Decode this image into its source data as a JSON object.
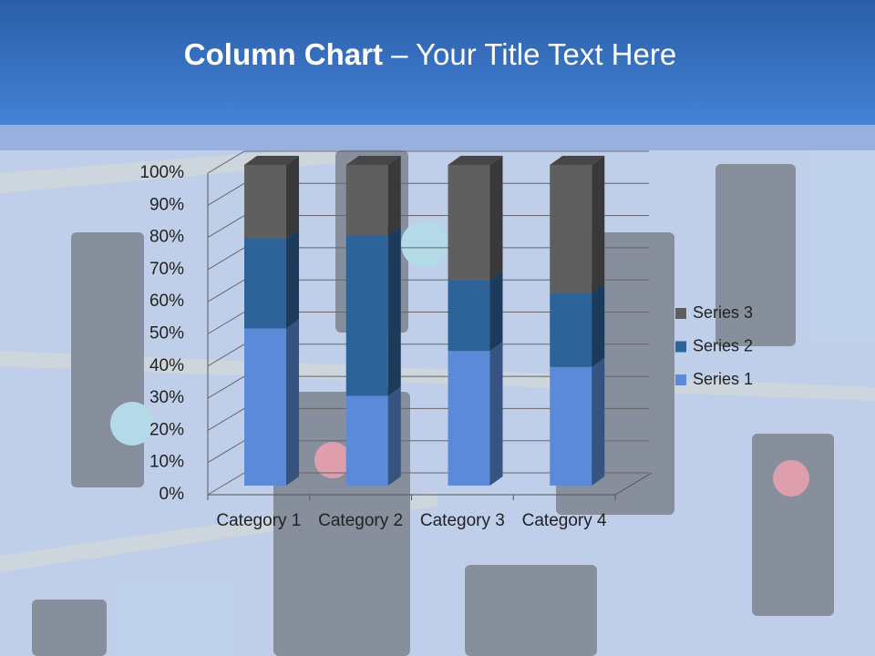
{
  "chart_data": {
    "type": "stacked_bar_3d",
    "title_parts": [
      "Column Chart",
      "– Your Title Text Here"
    ],
    "categories": [
      "Category 1",
      "Category 2",
      "Category 3",
      "Category 4"
    ],
    "series": [
      {
        "name": "Series 1",
        "color": "#5b8ad8",
        "values": [
          49,
          28,
          42,
          37
        ]
      },
      {
        "name": "Series 2",
        "color": "#2e6399",
        "values": [
          28,
          50,
          22,
          23
        ]
      },
      {
        "name": "Series 3",
        "color": "#5f5f5f",
        "values": [
          23,
          22,
          36,
          40
        ]
      }
    ],
    "ylim": [
      0,
      100
    ],
    "yticks": [
      {
        "value": 0,
        "label": "0%"
      },
      {
        "value": 10,
        "label": "10%"
      },
      {
        "value": 20,
        "label": "20%"
      },
      {
        "value": 30,
        "label": "30%"
      },
      {
        "value": 40,
        "label": "40%"
      },
      {
        "value": 50,
        "label": "50%"
      },
      {
        "value": 60,
        "label": "60%"
      },
      {
        "value": 70,
        "label": "70%"
      },
      {
        "value": 80,
        "label": "80%"
      },
      {
        "value": 90,
        "label": "90%"
      },
      {
        "value": 100,
        "label": "100%"
      }
    ],
    "grid": true,
    "legend": "right"
  }
}
